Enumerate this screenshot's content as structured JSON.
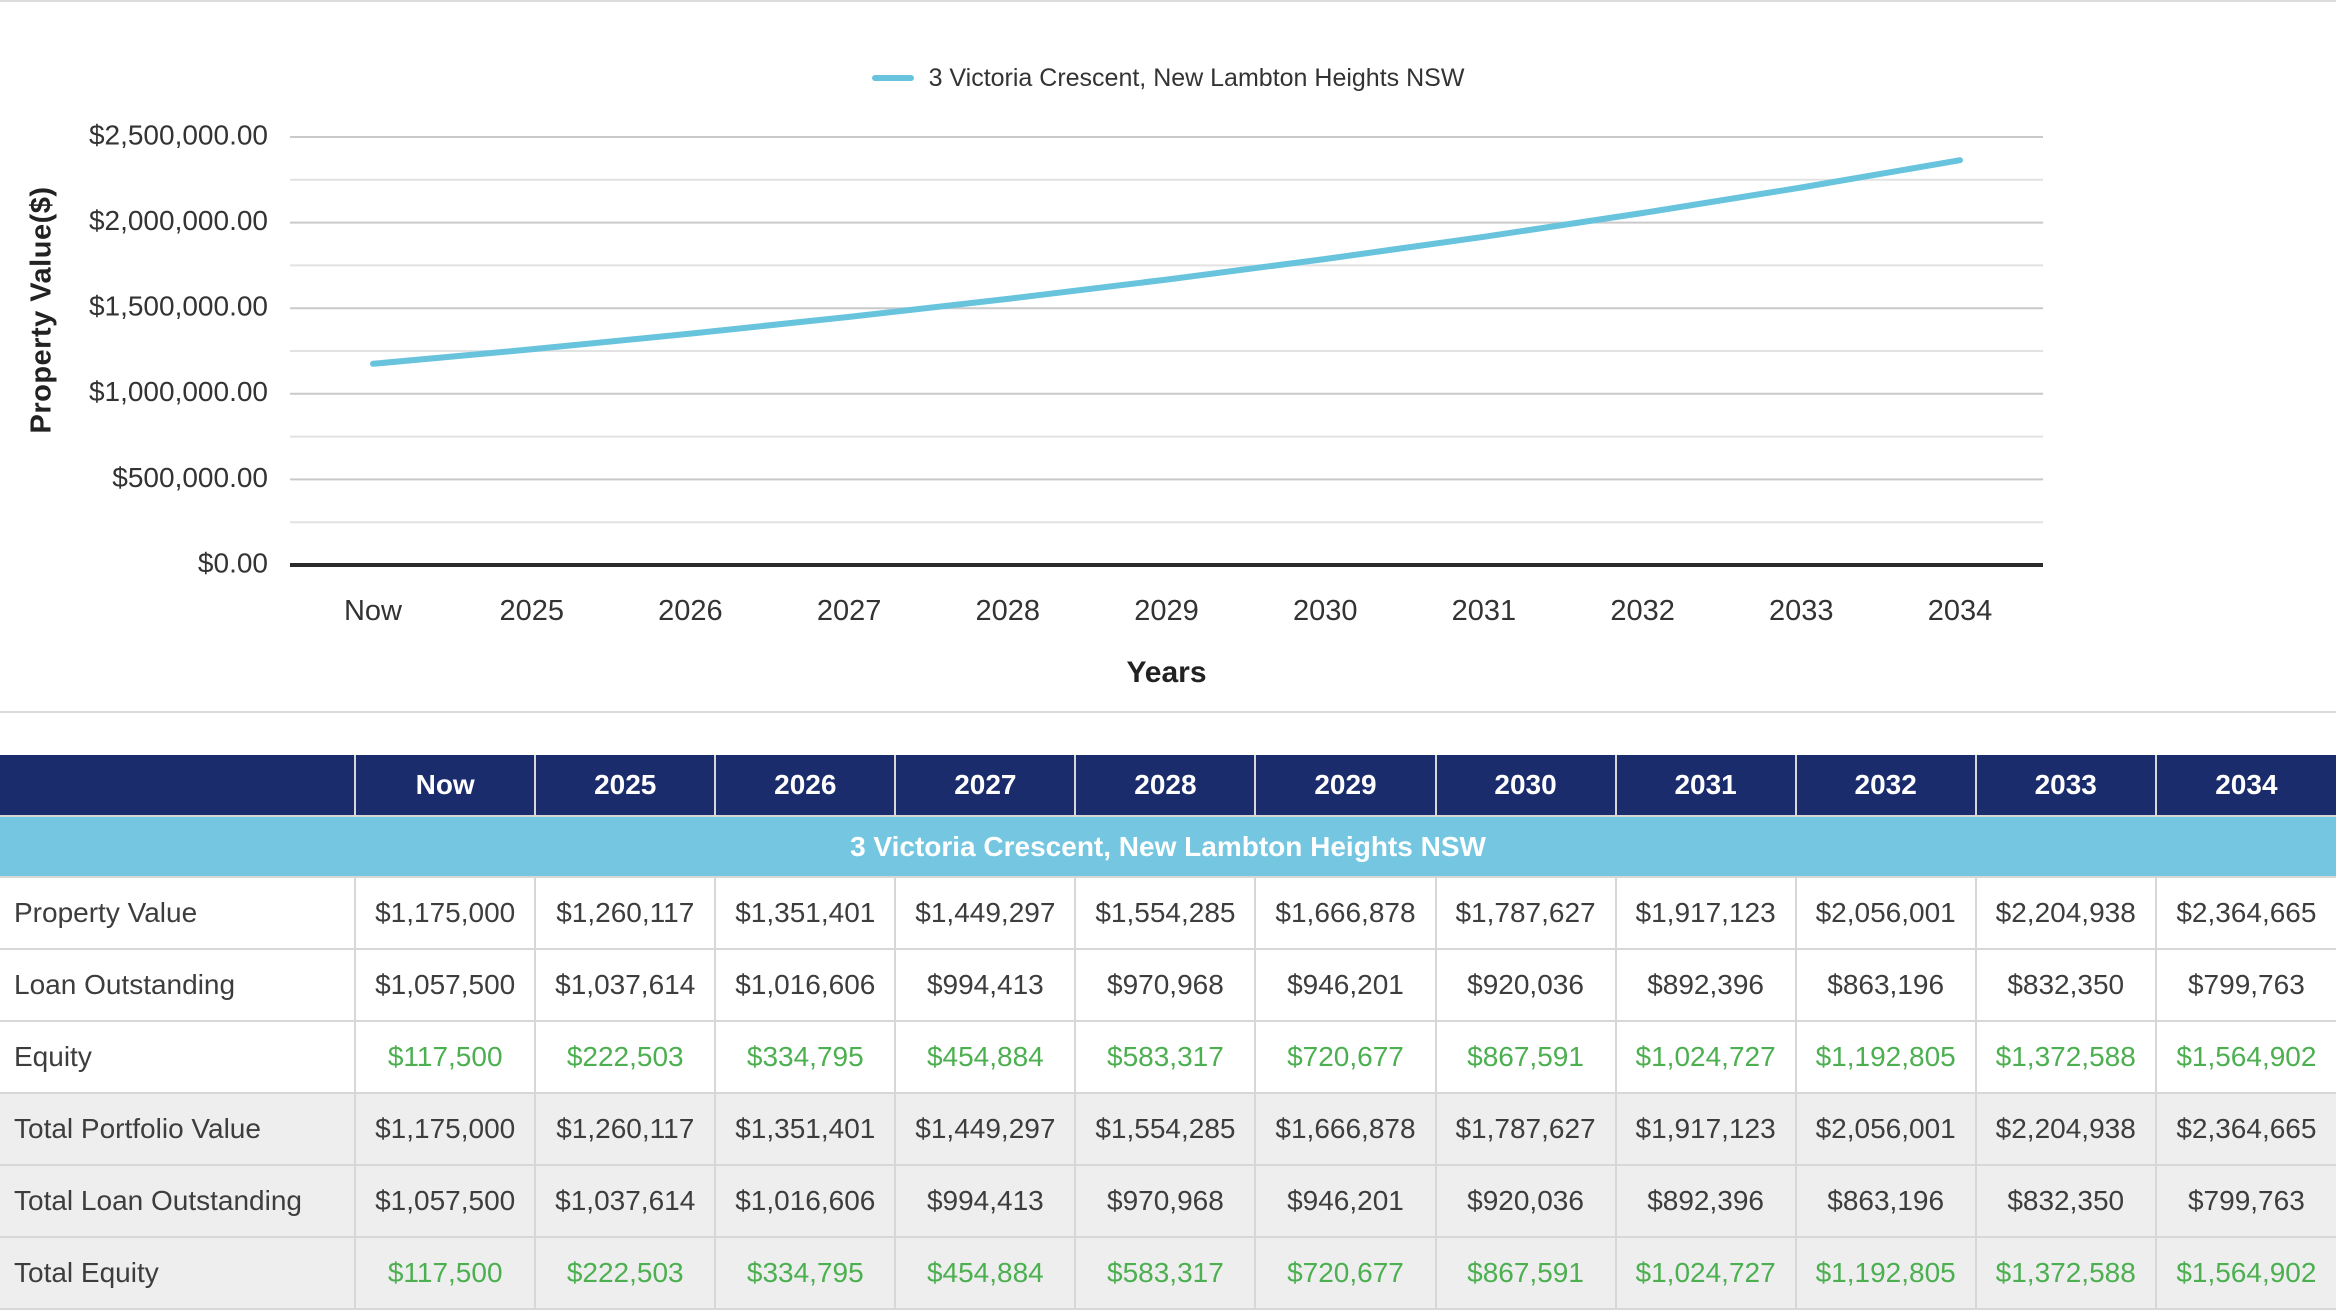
{
  "chart_data": {
    "type": "line",
    "title": "",
    "categories": [
      "Now",
      "2025",
      "2026",
      "2027",
      "2028",
      "2029",
      "2030",
      "2031",
      "2032",
      "2033",
      "2034"
    ],
    "series": [
      {
        "name": "3 Victoria Crescent, New Lambton Heights NSW",
        "color": "#68c3dd",
        "values": [
          1175000,
          1260117,
          1351401,
          1449297,
          1554285,
          1666878,
          1787627,
          1917123,
          2056001,
          2204938,
          2364665
        ]
      }
    ],
    "xlabel": "Years",
    "ylabel": "Property Value($)",
    "ylim": [
      0,
      2500000
    ],
    "yticks": [
      {
        "value": 0,
        "label": "$0.00"
      },
      {
        "value": 500000,
        "label": "$500,000.00"
      },
      {
        "value": 1000000,
        "label": "$1,000,000.00"
      },
      {
        "value": 1500000,
        "label": "$1,500,000.00"
      },
      {
        "value": 2000000,
        "label": "$2,000,000.00"
      },
      {
        "value": 2500000,
        "label": "$2,500,000.00"
      }
    ],
    "minor_grid_step": 250000,
    "grid": true,
    "legend_position": "top-center",
    "markers": false
  },
  "table": {
    "columns": [
      "Now",
      "2025",
      "2026",
      "2027",
      "2028",
      "2029",
      "2030",
      "2031",
      "2032",
      "2033",
      "2034"
    ],
    "banner": "3 Victoria Crescent, New Lambton Heights NSW",
    "rows": [
      {
        "label": "Property Value",
        "style": "dark",
        "band": "white",
        "values": [
          "$1,175,000",
          "$1,260,117",
          "$1,351,401",
          "$1,449,297",
          "$1,554,285",
          "$1,666,878",
          "$1,787,627",
          "$1,917,123",
          "$2,056,001",
          "$2,204,938",
          "$2,364,665"
        ]
      },
      {
        "label": "Loan Outstanding",
        "style": "dark",
        "band": "white",
        "values": [
          "$1,057,500",
          "$1,037,614",
          "$1,016,606",
          "$994,413",
          "$970,968",
          "$946,201",
          "$920,036",
          "$892,396",
          "$863,196",
          "$832,350",
          "$799,763"
        ]
      },
      {
        "label": "Equity",
        "style": "green",
        "band": "white",
        "values": [
          "$117,500",
          "$222,503",
          "$334,795",
          "$454,884",
          "$583,317",
          "$720,677",
          "$867,591",
          "$1,024,727",
          "$1,192,805",
          "$1,372,588",
          "$1,564,902"
        ]
      },
      {
        "label": "Total Portfolio Value",
        "style": "dark",
        "band": "gray",
        "values": [
          "$1,175,000",
          "$1,260,117",
          "$1,351,401",
          "$1,449,297",
          "$1,554,285",
          "$1,666,878",
          "$1,787,627",
          "$1,917,123",
          "$2,056,001",
          "$2,204,938",
          "$2,364,665"
        ]
      },
      {
        "label": "Total Loan Outstanding",
        "style": "dark",
        "band": "gray",
        "values": [
          "$1,057,500",
          "$1,037,614",
          "$1,016,606",
          "$994,413",
          "$970,968",
          "$946,201",
          "$920,036",
          "$892,396",
          "$863,196",
          "$832,350",
          "$799,763"
        ]
      },
      {
        "label": "Total Equity",
        "style": "green",
        "band": "gray",
        "values": [
          "$117,500",
          "$222,503",
          "$334,795",
          "$454,884",
          "$583,317",
          "$720,677",
          "$867,591",
          "$1,024,727",
          "$1,192,805",
          "$1,372,588",
          "$1,564,902"
        ]
      }
    ]
  },
  "colors": {
    "navy_header": "#1b2c6c",
    "light_blue_banner": "#75c6e0",
    "series_line": "#68c3dd",
    "positive_green": "#4caf50",
    "grid_major": "#c9c9c9",
    "grid_minor": "#e2e2e2",
    "axis_line": "#2b2b2b",
    "band_gray": "#eeeeee",
    "cell_border": "#d7d7d7",
    "text_dark": "#3d3d3d",
    "tick_text": "#333333"
  }
}
